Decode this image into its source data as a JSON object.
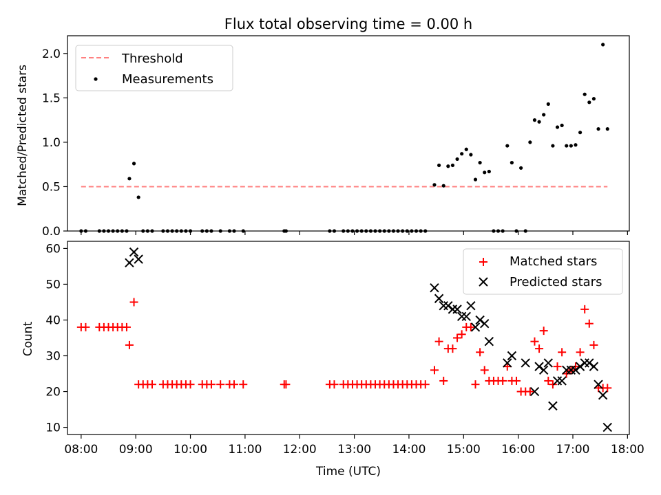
{
  "chart_data": [
    {
      "type": "scatter",
      "title": "Flux total observing time = 0.00 h",
      "xlabel": "",
      "ylabel": "Matched/Predicted stars",
      "xlim": [
        "07:45",
        "18:02"
      ],
      "ylim": [
        0,
        2.2
      ],
      "y_ticks": [
        "0.0",
        "0.5",
        "1.0",
        "1.5",
        "2.0"
      ],
      "legend_position": "upper-left",
      "series": [
        {
          "name": "Threshold",
          "kind": "dashed-line",
          "color": "#ff8080",
          "x": [
            "08:00",
            "17:38"
          ],
          "y": [
            0.5,
            0.5
          ]
        },
        {
          "name": "Measurements",
          "kind": "points",
          "color": "#000000",
          "x": [
            "08:00",
            "08:05",
            "08:20",
            "08:25",
            "08:30",
            "08:35",
            "08:40",
            "08:45",
            "08:50",
            "08:53",
            "08:58",
            "09:03",
            "09:08",
            "09:13",
            "09:18",
            "09:30",
            "09:35",
            "09:40",
            "09:45",
            "09:50",
            "09:55",
            "10:00",
            "10:13",
            "10:18",
            "10:23",
            "10:33",
            "10:43",
            "10:48",
            "10:58",
            "11:43",
            "11:45",
            "12:33",
            "12:38",
            "12:48",
            "12:53",
            "12:58",
            "13:03",
            "13:08",
            "13:13",
            "13:18",
            "13:23",
            "13:28",
            "13:33",
            "13:38",
            "13:43",
            "13:48",
            "13:53",
            "13:58",
            "14:03",
            "14:08",
            "14:13",
            "14:18",
            "14:28",
            "14:33",
            "14:38",
            "14:43",
            "14:48",
            "14:53",
            "14:58",
            "15:03",
            "15:08",
            "15:13",
            "15:18",
            "15:23",
            "15:28",
            "15:33",
            "15:38",
            "15:43",
            "15:48",
            "15:53",
            "15:58",
            "16:03",
            "16:08",
            "16:13",
            "16:18",
            "16:23",
            "16:28",
            "16:33",
            "16:38",
            "16:43",
            "16:48",
            "16:53",
            "16:58",
            "17:03",
            "17:08",
            "17:13",
            "17:18",
            "17:23",
            "17:28",
            "17:33",
            "17:38"
          ],
          "y": [
            0,
            0,
            0,
            0,
            0,
            0,
            0,
            0,
            0,
            0.59,
            0.76,
            0.38,
            0,
            0,
            0,
            0,
            0,
            0,
            0,
            0,
            0,
            0,
            0,
            0,
            0,
            0,
            0,
            0,
            0,
            0,
            0,
            0,
            0,
            0,
            0,
            0,
            0,
            0,
            0,
            0,
            0,
            0,
            0,
            0,
            0,
            0,
            0,
            0,
            0,
            0,
            0,
            0,
            0.52,
            0.74,
            0.51,
            0.73,
            0.74,
            0.81,
            0.87,
            0.92,
            0.86,
            0.58,
            0.77,
            0.66,
            0.67,
            0,
            0,
            0,
            0.96,
            0.77,
            0,
            0.71,
            0,
            1.0,
            1.25,
            1.23,
            1.31,
            1.43,
            0.96,
            1.17,
            1.19,
            0.96,
            0.96,
            0.97,
            1.11,
            1.54,
            1.45,
            1.49,
            1.15,
            2.1,
            1.15
          ]
        }
      ]
    },
    {
      "type": "scatter",
      "title": "",
      "xlabel": "Time (UTC)",
      "ylabel": "Count",
      "xlim": [
        "07:45",
        "18:02"
      ],
      "ylim": [
        8,
        62
      ],
      "x_ticks": [
        "08:00",
        "09:00",
        "10:00",
        "11:00",
        "12:00",
        "13:00",
        "14:00",
        "15:00",
        "16:00",
        "17:00",
        "18:00"
      ],
      "y_ticks": [
        "10",
        "20",
        "30",
        "40",
        "50",
        "60"
      ],
      "legend_position": "upper-right",
      "series": [
        {
          "name": "Matched stars",
          "marker": "plus",
          "color": "#ff0000",
          "x": [
            "08:00",
            "08:05",
            "08:20",
            "08:25",
            "08:30",
            "08:35",
            "08:40",
            "08:45",
            "08:50",
            "08:53",
            "08:58",
            "09:03",
            "09:08",
            "09:13",
            "09:18",
            "09:30",
            "09:35",
            "09:40",
            "09:45",
            "09:50",
            "09:55",
            "10:00",
            "10:13",
            "10:18",
            "10:23",
            "10:33",
            "10:43",
            "10:48",
            "10:58",
            "11:43",
            "11:45",
            "12:33",
            "12:38",
            "12:48",
            "12:53",
            "12:58",
            "13:03",
            "13:08",
            "13:13",
            "13:18",
            "13:23",
            "13:28",
            "13:33",
            "13:38",
            "13:43",
            "13:48",
            "13:53",
            "13:58",
            "14:03",
            "14:08",
            "14:13",
            "14:18",
            "14:28",
            "14:33",
            "14:38",
            "14:43",
            "14:48",
            "14:53",
            "14:58",
            "15:03",
            "15:08",
            "15:13",
            "15:18",
            "15:23",
            "15:28",
            "15:33",
            "15:38",
            "15:43",
            "15:48",
            "15:53",
            "15:58",
            "16:03",
            "16:08",
            "16:13",
            "16:18",
            "16:23",
            "16:28",
            "16:33",
            "16:38",
            "16:43",
            "16:48",
            "16:53",
            "16:58",
            "17:03",
            "17:08",
            "17:13",
            "17:18",
            "17:23",
            "17:28",
            "17:33",
            "17:38"
          ],
          "y": [
            38,
            38,
            38,
            38,
            38,
            38,
            38,
            38,
            38,
            33,
            45,
            22,
            22,
            22,
            22,
            22,
            22,
            22,
            22,
            22,
            22,
            22,
            22,
            22,
            22,
            22,
            22,
            22,
            22,
            22,
            22,
            22,
            22,
            22,
            22,
            22,
            22,
            22,
            22,
            22,
            22,
            22,
            22,
            22,
            22,
            22,
            22,
            22,
            22,
            22,
            22,
            22,
            26,
            34,
            23,
            32,
            32,
            35,
            36,
            38,
            38,
            22,
            31,
            26,
            23,
            23,
            23,
            23,
            27,
            23,
            23,
            20,
            20,
            20,
            34,
            32,
            37,
            23,
            22,
            27,
            31,
            25,
            26,
            27,
            31,
            43,
            39,
            33,
            21,
            21,
            21
          ]
        },
        {
          "name": "Predicted stars",
          "marker": "x",
          "color": "#000000",
          "x": [
            "08:53",
            "08:58",
            "09:03",
            "14:28",
            "14:33",
            "14:38",
            "14:43",
            "14:48",
            "14:53",
            "14:58",
            "15:03",
            "15:08",
            "15:13",
            "15:18",
            "15:23",
            "15:28",
            "15:48",
            "15:53",
            "16:08",
            "16:18",
            "16:23",
            "16:28",
            "16:33",
            "16:38",
            "16:43",
            "16:48",
            "16:53",
            "16:58",
            "17:03",
            "17:08",
            "17:13",
            "17:18",
            "17:23",
            "17:28",
            "17:33",
            "17:38"
          ],
          "y": [
            56,
            59,
            57,
            49,
            46,
            44,
            44,
            43,
            43,
            41,
            41,
            44,
            38,
            40,
            39,
            34,
            28,
            30,
            28,
            20,
            27,
            26,
            28,
            16,
            23,
            23,
            26,
            26,
            26,
            27,
            28,
            28,
            27,
            22,
            19,
            10
          ]
        }
      ]
    }
  ]
}
